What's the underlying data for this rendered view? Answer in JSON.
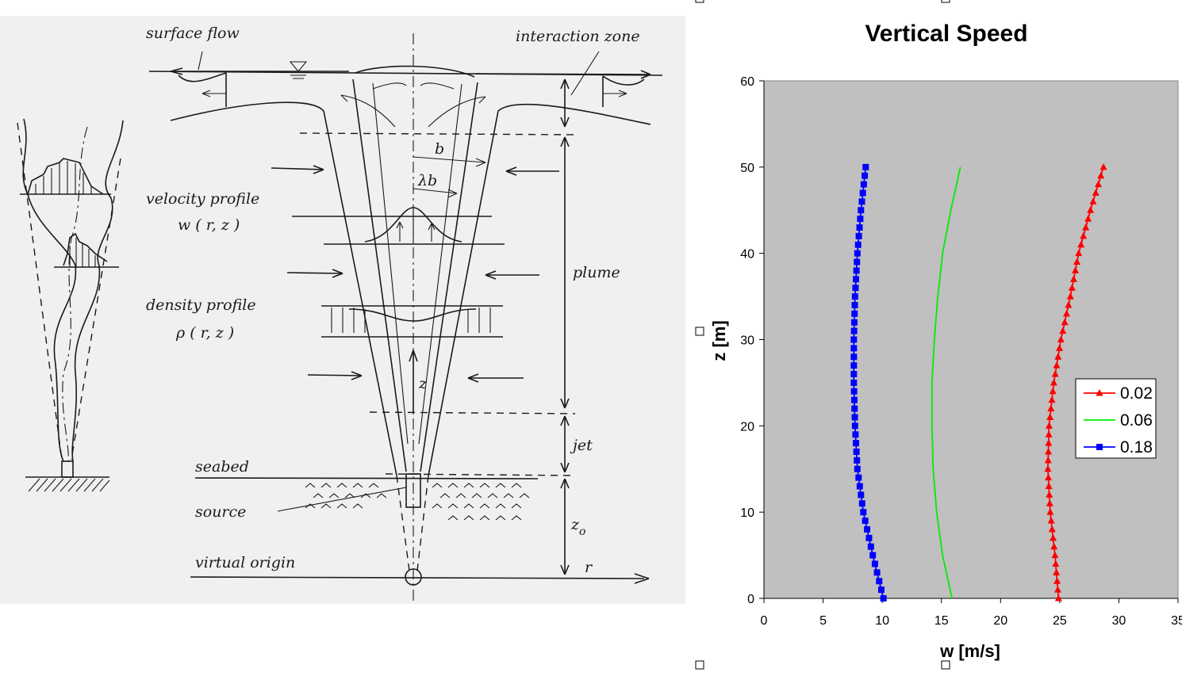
{
  "diagram": {
    "labels": {
      "surface_flow": "surface flow",
      "interaction_zone": "interaction zone",
      "velocity_profile": "velocity profile",
      "velocity_symbol": "w ( r, z )",
      "density_profile": "density profile",
      "density_symbol": "ρ ( r, z )",
      "seabed": "seabed",
      "source": "source",
      "virtual_origin": "virtual origin",
      "b": "b",
      "lambda_b": "λb",
      "z": "z",
      "plume": "plume",
      "jet": "jet",
      "z0": "z",
      "z0_sub": "o",
      "r": "r"
    }
  },
  "chart_data": {
    "type": "line",
    "title": "Vertical Speed",
    "xlabel": "w [m/s]",
    "ylabel": "z [m]",
    "xlim": [
      0,
      35
    ],
    "ylim": [
      0,
      60
    ],
    "xticks": [
      0,
      5,
      10,
      15,
      20,
      25,
      30,
      35
    ],
    "yticks": [
      0,
      10,
      20,
      30,
      40,
      50,
      60
    ],
    "grid": false,
    "background": "#c0c0c0",
    "legend_position": "right",
    "series": [
      {
        "name": "0.02",
        "color": "#ff0000",
        "marker": "triangle",
        "points": [
          [
            24.9,
            0
          ],
          [
            24.6,
            5
          ],
          [
            24.2,
            10
          ],
          [
            24.0,
            15
          ],
          [
            24.1,
            20
          ],
          [
            24.5,
            25
          ],
          [
            25.1,
            30
          ],
          [
            25.9,
            35
          ],
          [
            26.6,
            40
          ],
          [
            27.6,
            45
          ],
          [
            28.7,
            50
          ]
        ]
      },
      {
        "name": "0.06",
        "color": "#00ee00",
        "marker": "none",
        "points": [
          [
            15.9,
            0
          ],
          [
            15.1,
            5
          ],
          [
            14.6,
            10
          ],
          [
            14.3,
            15
          ],
          [
            14.2,
            20
          ],
          [
            14.2,
            25
          ],
          [
            14.4,
            30
          ],
          [
            14.7,
            35
          ],
          [
            15.1,
            40
          ],
          [
            15.8,
            45
          ],
          [
            16.6,
            50
          ]
        ]
      },
      {
        "name": "0.18",
        "color": "#0000ff",
        "marker": "square",
        "points": [
          [
            10.1,
            0
          ],
          [
            9.2,
            5
          ],
          [
            8.4,
            10
          ],
          [
            7.9,
            15
          ],
          [
            7.7,
            20
          ],
          [
            7.6,
            25
          ],
          [
            7.6,
            30
          ],
          [
            7.7,
            35
          ],
          [
            7.9,
            40
          ],
          [
            8.2,
            45
          ],
          [
            8.6,
            50
          ]
        ]
      }
    ]
  }
}
